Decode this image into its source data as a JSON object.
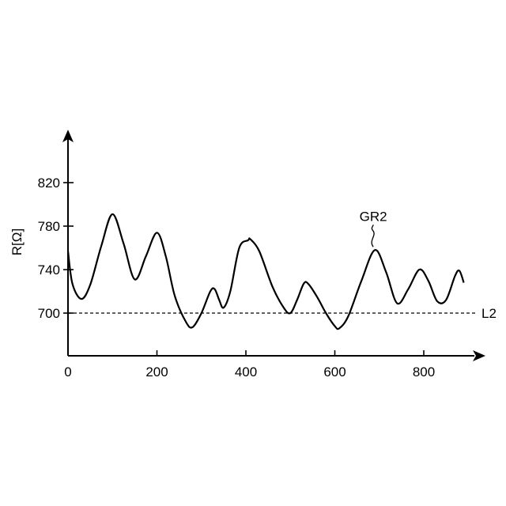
{
  "chart_data": {
    "type": "line",
    "ylabel": "R[Ω]",
    "xlabel": "",
    "xlim": [
      0,
      930
    ],
    "ylim": [
      662,
      860
    ],
    "x_ticks": [
      0,
      200,
      400,
      600,
      800
    ],
    "y_ticks": [
      700,
      740,
      780,
      820
    ],
    "grid": false,
    "series": [
      {
        "name": "GR2",
        "color": "#000000",
        "points": [
          [
            0,
            757
          ],
          [
            10,
            727
          ],
          [
            30,
            713
          ],
          [
            50,
            726
          ],
          [
            75,
            762
          ],
          [
            100,
            791
          ],
          [
            125,
            764
          ],
          [
            150,
            731
          ],
          [
            175,
            752
          ],
          [
            200,
            774
          ],
          [
            220,
            752
          ],
          [
            240,
            716
          ],
          [
            265,
            692
          ],
          [
            280,
            687
          ],
          [
            300,
            700
          ],
          [
            320,
            720
          ],
          [
            330,
            722
          ],
          [
            340,
            712
          ],
          [
            350,
            705
          ],
          [
            365,
            720
          ],
          [
            385,
            760
          ],
          [
            405,
            767
          ],
          [
            410,
            768
          ],
          [
            430,
            757
          ],
          [
            460,
            724
          ],
          [
            485,
            705
          ],
          [
            500,
            700
          ],
          [
            515,
            712
          ],
          [
            530,
            727
          ],
          [
            540,
            727
          ],
          [
            560,
            715
          ],
          [
            580,
            700
          ],
          [
            600,
            688
          ],
          [
            610,
            686
          ],
          [
            630,
            697
          ],
          [
            660,
            730
          ],
          [
            690,
            758
          ],
          [
            715,
            738
          ],
          [
            740,
            709
          ],
          [
            765,
            722
          ],
          [
            790,
            740
          ],
          [
            810,
            730
          ],
          [
            830,
            711
          ],
          [
            850,
            712
          ],
          [
            870,
            734
          ],
          [
            880,
            739
          ],
          [
            890,
            728
          ]
        ]
      }
    ],
    "annotations": [
      {
        "text": "GR2",
        "points_to": [
          690,
          758
        ]
      },
      {
        "text": "L2",
        "type": "hline",
        "y": 700,
        "style": "dashed"
      }
    ]
  }
}
